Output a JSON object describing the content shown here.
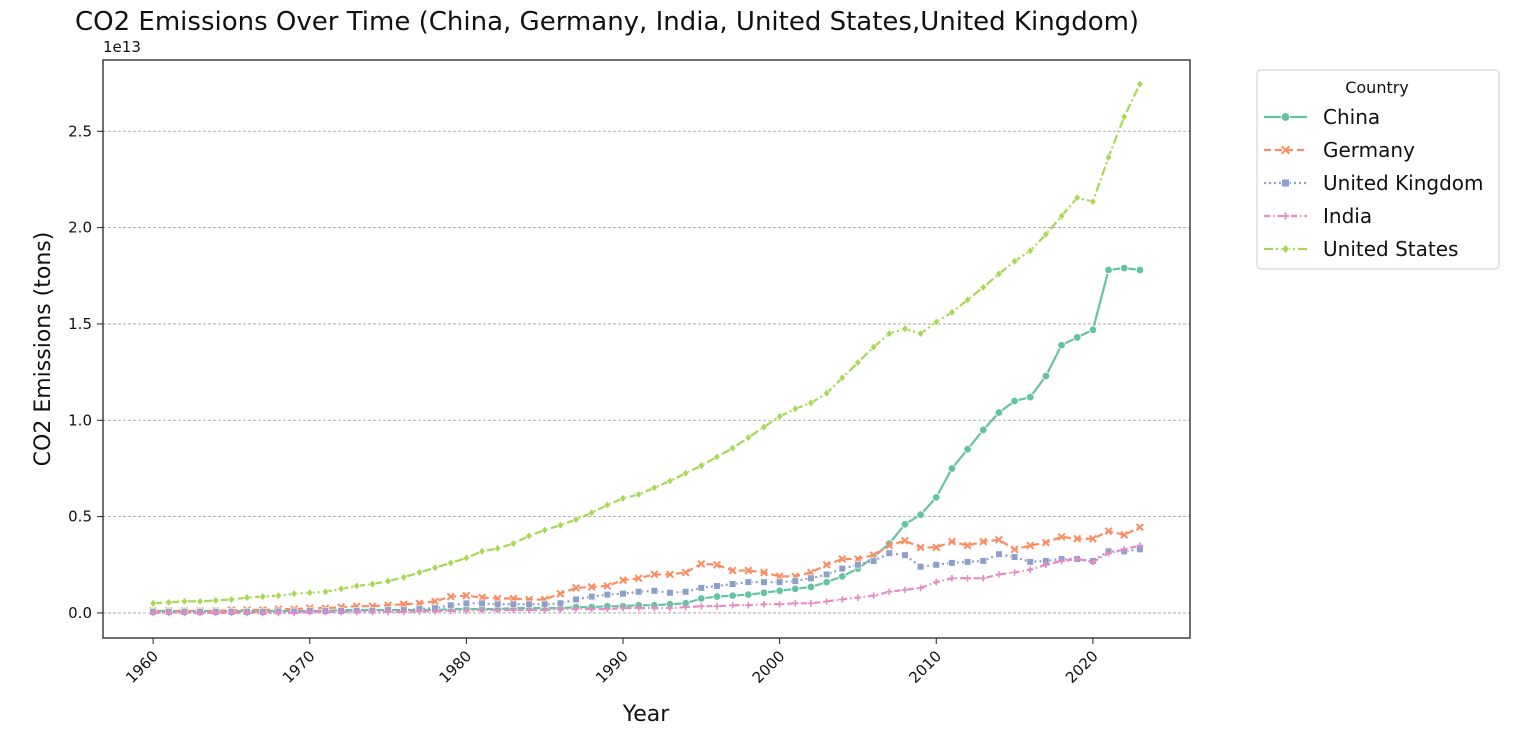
{
  "chart_data": {
    "type": "line",
    "title": "CO2 Emissions Over Time (China, Germany, India, United States,United Kingdom)",
    "xlabel": "Year",
    "ylabel": "CO2 Emissions (tons)",
    "y_offset_label": "1e13",
    "xlim": [
      1956.8,
      2026.2
    ],
    "ylim": [
      -0.13,
      2.87
    ],
    "x_ticks": [
      1960,
      1970,
      1980,
      1990,
      2000,
      2010,
      2020
    ],
    "x_tick_labels": [
      "1960",
      "1970",
      "1980",
      "1990",
      "2000",
      "2010",
      "2020"
    ],
    "y_ticks": [
      0.0,
      0.5,
      1.0,
      1.5,
      2.0,
      2.5
    ],
    "y_tick_labels": [
      "0.0",
      "0.5",
      "1.0",
      "1.5",
      "2.0",
      "2.5"
    ],
    "y_unit": "1e13 tons",
    "grid": "horizontal dashed",
    "legend": {
      "title": "Country",
      "placement": "outside right"
    },
    "x": [
      1960,
      1961,
      1962,
      1963,
      1964,
      1965,
      1966,
      1967,
      1968,
      1969,
      1970,
      1971,
      1972,
      1973,
      1974,
      1975,
      1976,
      1977,
      1978,
      1979,
      1980,
      1981,
      1982,
      1983,
      1984,
      1985,
      1986,
      1987,
      1988,
      1989,
      1990,
      1991,
      1992,
      1993,
      1994,
      1995,
      1996,
      1997,
      1998,
      1999,
      2000,
      2001,
      2002,
      2003,
      2004,
      2005,
      2006,
      2007,
      2008,
      2009,
      2010,
      2011,
      2012,
      2013,
      2014,
      2015,
      2016,
      2017,
      2018,
      2019,
      2020,
      2021,
      2022,
      2023
    ],
    "series": [
      {
        "name": "China",
        "color": "#66c2a5",
        "dash": "",
        "marker": "circle",
        "values": [
          0.01,
          0.01,
          0.01,
          0.01,
          0.01,
          0.01,
          0.01,
          0.01,
          0.01,
          0.01,
          0.01,
          0.01,
          0.015,
          0.015,
          0.015,
          0.015,
          0.015,
          0.015,
          0.015,
          0.02,
          0.02,
          0.02,
          0.02,
          0.025,
          0.025,
          0.025,
          0.025,
          0.03,
          0.03,
          0.035,
          0.035,
          0.04,
          0.04,
          0.045,
          0.05,
          0.075,
          0.085,
          0.09,
          0.095,
          0.105,
          0.115,
          0.125,
          0.135,
          0.16,
          0.19,
          0.23,
          0.29,
          0.36,
          0.46,
          0.51,
          0.6,
          0.75,
          0.85,
          0.95,
          1.04,
          1.1,
          1.12,
          1.23,
          1.39,
          1.43,
          1.47,
          1.78,
          1.79,
          1.78
        ]
      },
      {
        "name": "Germany",
        "color": "#fc8d62",
        "dash": "7,4",
        "marker": "x",
        "values": [
          0.01,
          0.01,
          0.01,
          0.01,
          0.01,
          0.015,
          0.015,
          0.015,
          0.02,
          0.02,
          0.025,
          0.025,
          0.03,
          0.035,
          0.035,
          0.04,
          0.045,
          0.05,
          0.06,
          0.085,
          0.09,
          0.08,
          0.075,
          0.075,
          0.07,
          0.07,
          0.1,
          0.13,
          0.135,
          0.14,
          0.17,
          0.18,
          0.2,
          0.2,
          0.21,
          0.255,
          0.25,
          0.22,
          0.22,
          0.21,
          0.19,
          0.19,
          0.21,
          0.25,
          0.28,
          0.28,
          0.3,
          0.35,
          0.375,
          0.34,
          0.34,
          0.37,
          0.35,
          0.37,
          0.38,
          0.33,
          0.35,
          0.365,
          0.395,
          0.385,
          0.385,
          0.425,
          0.405,
          0.445
        ]
      },
      {
        "name": "United Kingdom",
        "color": "#8da0cb",
        "dash": "2,3",
        "marker": "square",
        "values": [
          0.005,
          0.005,
          0.005,
          0.005,
          0.005,
          0.005,
          0.005,
          0.005,
          0.008,
          0.008,
          0.01,
          0.01,
          0.01,
          0.012,
          0.012,
          0.015,
          0.015,
          0.02,
          0.025,
          0.04,
          0.05,
          0.05,
          0.045,
          0.045,
          0.045,
          0.045,
          0.05,
          0.07,
          0.085,
          0.095,
          0.1,
          0.11,
          0.115,
          0.105,
          0.11,
          0.13,
          0.14,
          0.15,
          0.16,
          0.16,
          0.16,
          0.165,
          0.18,
          0.2,
          0.23,
          0.25,
          0.27,
          0.31,
          0.3,
          0.24,
          0.25,
          0.26,
          0.265,
          0.27,
          0.305,
          0.29,
          0.265,
          0.27,
          0.28,
          0.28,
          0.27,
          0.32,
          0.32,
          0.33
        ]
      },
      {
        "name": "India",
        "color": "#e78ac3",
        "dash": "6,3,1.5,3",
        "marker": "plus",
        "values": [
          0.0,
          0.0,
          0.0,
          0.0,
          0.0,
          0.0,
          0.0,
          0.0,
          0.0,
          0.0,
          0.005,
          0.005,
          0.005,
          0.005,
          0.005,
          0.005,
          0.005,
          0.008,
          0.01,
          0.01,
          0.012,
          0.015,
          0.015,
          0.015,
          0.015,
          0.015,
          0.02,
          0.02,
          0.02,
          0.02,
          0.025,
          0.025,
          0.025,
          0.025,
          0.03,
          0.035,
          0.035,
          0.04,
          0.04,
          0.045,
          0.045,
          0.05,
          0.05,
          0.06,
          0.07,
          0.08,
          0.09,
          0.11,
          0.12,
          0.13,
          0.16,
          0.18,
          0.18,
          0.18,
          0.2,
          0.21,
          0.225,
          0.25,
          0.27,
          0.28,
          0.265,
          0.31,
          0.33,
          0.35
        ]
      },
      {
        "name": "United States",
        "color": "#a6d854",
        "dash": "9,3,2,3",
        "marker": "diamond",
        "values": [
          0.05,
          0.055,
          0.06,
          0.06,
          0.065,
          0.07,
          0.08,
          0.085,
          0.09,
          0.1,
          0.105,
          0.11,
          0.125,
          0.14,
          0.15,
          0.165,
          0.185,
          0.21,
          0.235,
          0.26,
          0.285,
          0.32,
          0.335,
          0.36,
          0.4,
          0.43,
          0.455,
          0.485,
          0.52,
          0.56,
          0.595,
          0.615,
          0.65,
          0.685,
          0.725,
          0.765,
          0.81,
          0.855,
          0.91,
          0.965,
          1.02,
          1.06,
          1.09,
          1.14,
          1.22,
          1.3,
          1.38,
          1.45,
          1.475,
          1.45,
          1.51,
          1.56,
          1.625,
          1.69,
          1.76,
          1.825,
          1.88,
          1.965,
          2.06,
          2.155,
          2.135,
          2.365,
          2.575,
          2.745
        ]
      }
    ]
  }
}
